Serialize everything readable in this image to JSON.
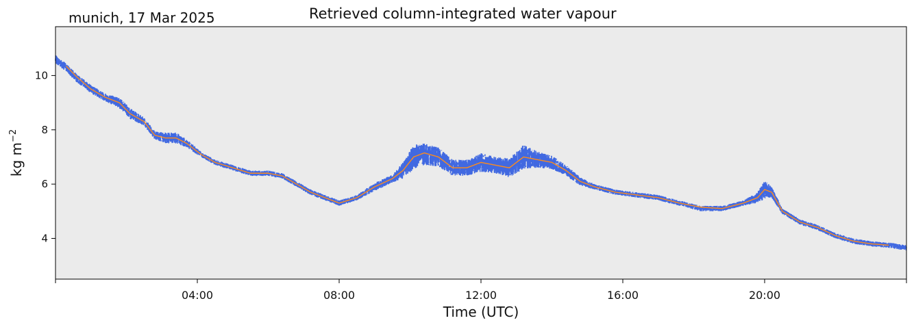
{
  "chart_data": {
    "type": "line",
    "title": "Retrieved column-integrated water vapour",
    "location_date": "munich, 17 Mar 2025",
    "xlabel": "Time (UTC)",
    "ylabel": "kg m",
    "ylabel_superscript": "−2",
    "xlim_hours": [
      0,
      24
    ],
    "ylim": [
      2.5,
      11.8
    ],
    "x_ticks": [
      {
        "hour": 4,
        "label": "04:00"
      },
      {
        "hour": 8,
        "label": "08:00"
      },
      {
        "hour": 12,
        "label": "12:00"
      },
      {
        "hour": 16,
        "label": "16:00"
      },
      {
        "hour": 20,
        "label": "20:00"
      }
    ],
    "y_ticks": [
      4,
      6,
      8,
      10
    ],
    "grid": false,
    "plot_background": "#ebebeb",
    "series": [
      {
        "kind": "raw",
        "color": "#4169e1",
        "x": [
          0.0,
          0.3,
          0.6,
          1.0,
          1.4,
          1.8,
          2.1,
          2.5,
          2.8,
          3.1,
          3.4,
          3.7,
          4.1,
          4.5,
          5.0,
          5.5,
          6.0,
          6.4,
          6.8,
          7.2,
          7.6,
          8.0,
          8.5,
          9.0,
          9.5,
          9.8,
          10.1,
          10.4,
          10.8,
          11.2,
          11.6,
          12.0,
          12.4,
          12.8,
          13.2,
          13.6,
          14.0,
          14.4,
          14.8,
          15.2,
          15.8,
          16.4,
          17.0,
          17.6,
          18.2,
          18.8,
          19.4,
          19.8,
          20.0,
          20.2,
          20.5,
          21.0,
          21.5,
          22.0,
          22.5,
          23.0,
          23.5,
          24.0
        ],
        "y": [
          10.6,
          10.3,
          9.9,
          9.5,
          9.2,
          9.0,
          8.6,
          8.3,
          7.8,
          7.7,
          7.7,
          7.5,
          7.1,
          6.8,
          6.6,
          6.4,
          6.4,
          6.3,
          6.0,
          5.7,
          5.5,
          5.3,
          5.5,
          5.9,
          6.2,
          6.5,
          7.0,
          7.1,
          7.0,
          6.6,
          6.6,
          6.8,
          6.7,
          6.6,
          7.0,
          6.9,
          6.8,
          6.5,
          6.1,
          5.9,
          5.7,
          5.6,
          5.5,
          5.3,
          5.1,
          5.1,
          5.3,
          5.5,
          5.8,
          5.7,
          5.0,
          4.6,
          4.4,
          4.1,
          3.9,
          3.8,
          3.75,
          3.65
        ],
        "noise": [
          0.15,
          0.15,
          0.15,
          0.15,
          0.15,
          0.2,
          0.2,
          0.15,
          0.15,
          0.2,
          0.2,
          0.15,
          0.1,
          0.1,
          0.1,
          0.1,
          0.1,
          0.1,
          0.1,
          0.1,
          0.1,
          0.1,
          0.1,
          0.15,
          0.15,
          0.3,
          0.45,
          0.4,
          0.35,
          0.3,
          0.3,
          0.35,
          0.3,
          0.35,
          0.45,
          0.3,
          0.25,
          0.2,
          0.15,
          0.1,
          0.1,
          0.1,
          0.1,
          0.1,
          0.1,
          0.1,
          0.1,
          0.2,
          0.35,
          0.2,
          0.1,
          0.1,
          0.1,
          0.1,
          0.1,
          0.1,
          0.1,
          0.1
        ]
      },
      {
        "kind": "smoothed",
        "color": "#ff8c1a",
        "x": [
          0.3,
          0.6,
          1.0,
          1.4,
          1.8,
          2.1,
          2.5,
          2.8,
          3.1,
          3.4,
          3.7,
          4.1,
          4.5,
          5.0,
          5.5,
          6.0,
          6.4,
          6.8,
          7.2,
          7.6,
          8.0,
          8.5,
          9.0,
          9.5,
          9.8,
          10.1,
          10.4,
          10.8,
          11.2,
          11.6,
          12.0,
          12.4,
          12.8,
          13.2,
          13.6,
          14.0,
          14.4,
          14.8,
          15.2,
          15.8,
          16.4,
          17.0,
          17.6,
          18.2,
          18.8,
          19.4,
          19.8,
          20.0,
          20.2,
          20.5,
          21.0,
          21.5,
          22.0,
          22.5,
          23.0,
          23.5
        ],
        "y": [
          10.35,
          9.95,
          9.5,
          9.2,
          9.0,
          8.6,
          8.3,
          7.8,
          7.7,
          7.7,
          7.5,
          7.1,
          6.8,
          6.6,
          6.4,
          6.4,
          6.3,
          6.0,
          5.7,
          5.5,
          5.3,
          5.5,
          5.9,
          6.2,
          6.5,
          7.0,
          7.15,
          7.0,
          6.6,
          6.6,
          6.8,
          6.7,
          6.6,
          7.0,
          6.9,
          6.8,
          6.5,
          6.1,
          5.9,
          5.7,
          5.6,
          5.5,
          5.3,
          5.15,
          5.1,
          5.3,
          5.5,
          5.8,
          5.7,
          5.0,
          4.6,
          4.4,
          4.1,
          3.9,
          3.8,
          3.75
        ]
      }
    ]
  }
}
